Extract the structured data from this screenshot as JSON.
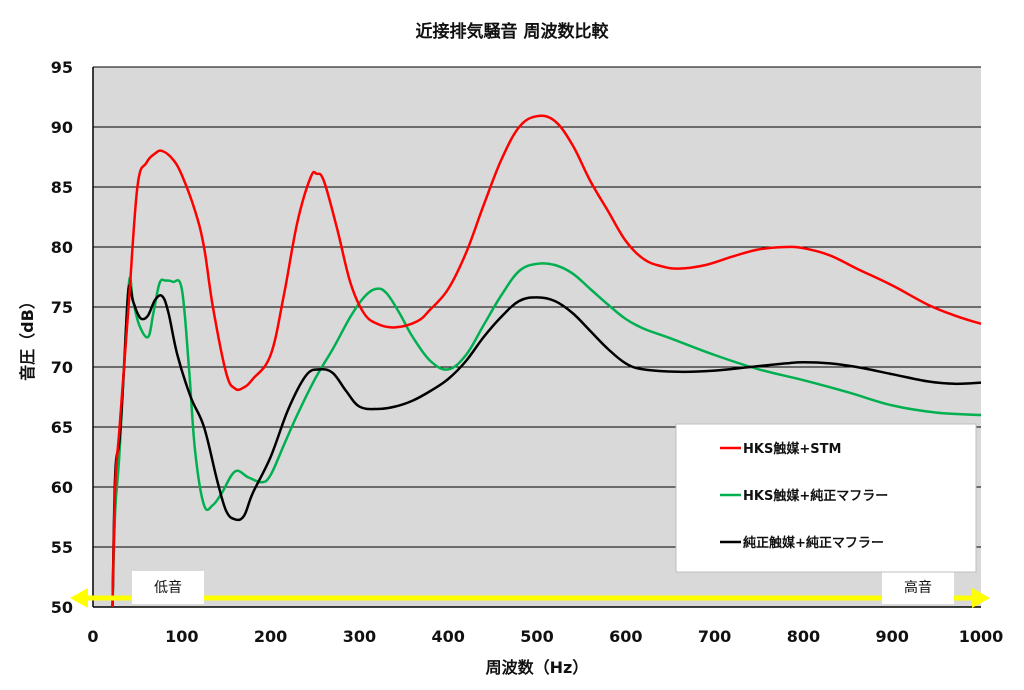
{
  "chart_data": {
    "type": "line",
    "title": "近接排気騒音 周波数比較",
    "xlabel": "周波数（Hz）",
    "ylabel": "音圧（dB）",
    "xlim": [
      0,
      1000
    ],
    "ylim": [
      50,
      95
    ],
    "xticks": [
      "0",
      "100",
      "200",
      "300",
      "400",
      "500",
      "600",
      "700",
      "800",
      "900",
      "1000"
    ],
    "yticks": [
      "50",
      "55",
      "60",
      "65",
      "70",
      "75",
      "80",
      "85",
      "90",
      "95"
    ],
    "grid": "horizontal",
    "background": "#d9d9d9",
    "legend_position": "bottom-right",
    "series": [
      {
        "name": "HKS触媒+STM",
        "color": "#ff0000",
        "x": [
          22,
          25,
          30,
          40,
          50,
          60,
          70,
          78,
          90,
          100,
          115,
          125,
          135,
          150,
          160,
          170,
          180,
          200,
          215,
          230,
          245,
          252,
          260,
          275,
          290,
          305,
          320,
          340,
          365,
          380,
          400,
          420,
          440,
          460,
          480,
          500,
          520,
          540,
          560,
          580,
          600,
          620,
          640,
          660,
          690,
          720,
          750,
          780,
          800,
          830,
          860,
          900,
          940,
          970,
          1000
        ],
        "y": [
          50,
          60,
          65,
          75,
          85,
          87,
          87.8,
          88,
          87.3,
          86,
          83,
          80,
          75,
          69.5,
          68.2,
          68.3,
          69,
          71,
          76,
          82,
          85.8,
          86.1,
          85.5,
          81.5,
          77,
          74.5,
          73.6,
          73.3,
          73.8,
          74.8,
          76.5,
          79.5,
          83.5,
          87.3,
          90,
          90.9,
          90.5,
          88.5,
          85.5,
          83,
          80.5,
          79,
          78.4,
          78.2,
          78.5,
          79.2,
          79.8,
          80,
          79.9,
          79.3,
          78.2,
          76.8,
          75.2,
          74.3,
          73.6
        ]
      },
      {
        "name": "HKS触媒+純正マフラー",
        "color": "#00b050",
        "x": [
          22,
          25,
          30,
          40,
          45,
          52,
          62,
          68,
          75,
          82,
          90,
          100,
          108,
          115,
          125,
          135,
          145,
          160,
          175,
          190,
          200,
          215,
          230,
          250,
          270,
          290,
          305,
          318,
          330,
          345,
          360,
          380,
          400,
          420,
          440,
          460,
          480,
          500,
          520,
          540,
          560,
          580,
          600,
          620,
          650,
          700,
          750,
          800,
          850,
          900,
          950,
          1000
        ],
        "y": [
          50,
          58,
          63,
          76.6,
          75.5,
          73.5,
          72.5,
          74.5,
          77,
          77.2,
          77.1,
          76.5,
          70,
          63,
          58.5,
          58.5,
          59.5,
          61.3,
          60.8,
          60.4,
          61,
          63.5,
          66,
          69,
          71.5,
          74.2,
          75.8,
          76.5,
          76.2,
          74.5,
          72.5,
          70.5,
          69.8,
          71,
          73.5,
          76,
          78,
          78.6,
          78.5,
          77.8,
          76.5,
          75.2,
          74,
          73.2,
          72.4,
          71,
          69.8,
          68.9,
          67.9,
          66.8,
          66.2,
          66
        ]
      },
      {
        "name": "純正触媒+純正マフラー",
        "color": "#000000",
        "x": [
          22,
          25,
          30,
          35,
          40,
          45,
          50,
          55,
          62,
          70,
          78,
          85,
          95,
          110,
          125,
          140,
          150,
          160,
          170,
          180,
          200,
          220,
          240,
          255,
          270,
          285,
          300,
          320,
          340,
          360,
          380,
          400,
          420,
          440,
          460,
          480,
          500,
          520,
          540,
          560,
          580,
          600,
          620,
          660,
          700,
          740,
          780,
          800,
          830,
          860,
          900,
          940,
          970,
          1000
        ],
        "y": [
          50,
          61,
          64,
          70,
          76.5,
          75.5,
          74.5,
          74,
          74.3,
          75.6,
          75.9,
          74.5,
          71,
          67.5,
          65,
          60.5,
          58,
          57.3,
          57.6,
          59.5,
          62.5,
          66.5,
          69.3,
          69.8,
          69.5,
          68,
          66.7,
          66.5,
          66.7,
          67.2,
          68,
          69,
          70.5,
          72.5,
          74.2,
          75.5,
          75.8,
          75.5,
          74.5,
          73,
          71.5,
          70.3,
          69.8,
          69.6,
          69.7,
          70,
          70.3,
          70.4,
          70.3,
          70,
          69.4,
          68.8,
          68.6,
          68.7
        ]
      }
    ],
    "annotations": {
      "low_label": "低音",
      "high_label": "高音",
      "arrow_color": "#ffff00"
    }
  }
}
